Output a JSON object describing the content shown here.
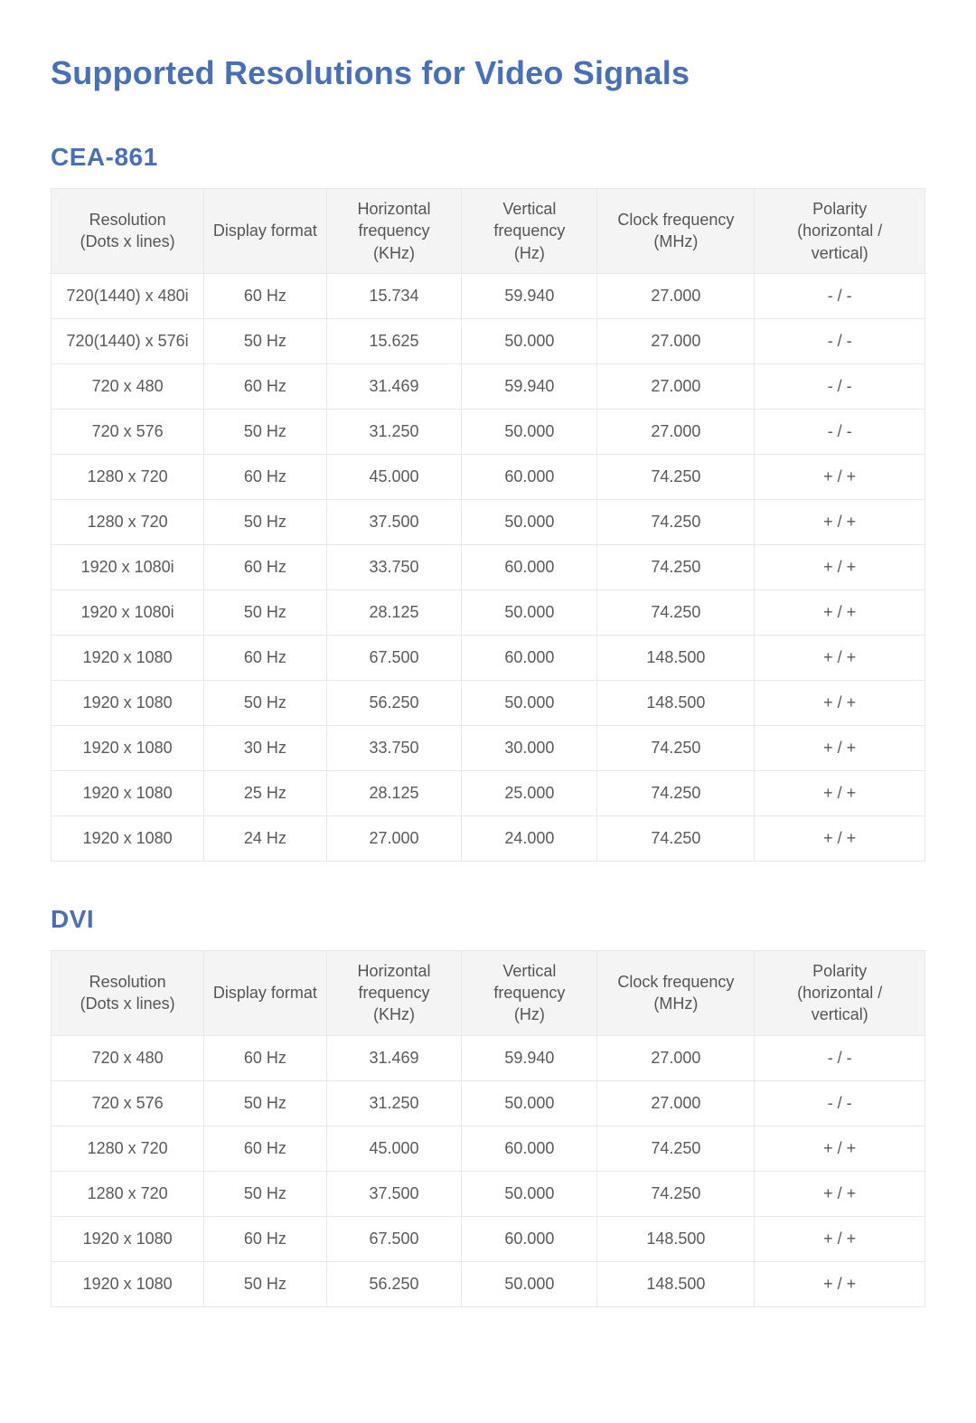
{
  "title": "Supported Resolutions for Video Signals",
  "columns": [
    "Resolution\n(Dots x lines)",
    "Display format",
    "Horizontal\nfrequency\n(KHz)",
    "Vertical\nfrequency\n(Hz)",
    "Clock frequency\n(MHz)",
    "Polarity\n(horizontal /\nvertical)"
  ],
  "sections": [
    {
      "heading": "CEA-861",
      "rows": [
        [
          "720(1440) x 480i",
          "60 Hz",
          "15.734",
          "59.940",
          "27.000",
          "- / -"
        ],
        [
          "720(1440) x 576i",
          "50 Hz",
          "15.625",
          "50.000",
          "27.000",
          "- / -"
        ],
        [
          "720 x 480",
          "60 Hz",
          "31.469",
          "59.940",
          "27.000",
          "- / -"
        ],
        [
          "720 x 576",
          "50 Hz",
          "31.250",
          "50.000",
          "27.000",
          "- / -"
        ],
        [
          "1280 x 720",
          "60 Hz",
          "45.000",
          "60.000",
          "74.250",
          "+ / +"
        ],
        [
          "1280 x 720",
          "50 Hz",
          "37.500",
          "50.000",
          "74.250",
          "+ / +"
        ],
        [
          "1920 x 1080i",
          "60 Hz",
          "33.750",
          "60.000",
          "74.250",
          "+ / +"
        ],
        [
          "1920 x 1080i",
          "50 Hz",
          "28.125",
          "50.000",
          "74.250",
          "+ / +"
        ],
        [
          "1920 x 1080",
          "60 Hz",
          "67.500",
          "60.000",
          "148.500",
          "+ / +"
        ],
        [
          "1920 x 1080",
          "50 Hz",
          "56.250",
          "50.000",
          "148.500",
          "+ / +"
        ],
        [
          "1920 x 1080",
          "30 Hz",
          "33.750",
          "30.000",
          "74.250",
          "+ / +"
        ],
        [
          "1920 x 1080",
          "25 Hz",
          "28.125",
          "25.000",
          "74.250",
          "+ / +"
        ],
        [
          "1920 x 1080",
          "24 Hz",
          "27.000",
          "24.000",
          "74.250",
          "+ / +"
        ]
      ]
    },
    {
      "heading": "DVI",
      "rows": [
        [
          "720 x 480",
          "60 Hz",
          "31.469",
          "59.940",
          "27.000",
          "- / -"
        ],
        [
          "720 x 576",
          "50 Hz",
          "31.250",
          "50.000",
          "27.000",
          "- / -"
        ],
        [
          "1280 x 720",
          "60 Hz",
          "45.000",
          "60.000",
          "74.250",
          "+ / +"
        ],
        [
          "1280 x 720",
          "50 Hz",
          "37.500",
          "50.000",
          "74.250",
          "+ / +"
        ],
        [
          "1920 x 1080",
          "60 Hz",
          "67.500",
          "60.000",
          "148.500",
          "+ / +"
        ],
        [
          "1920 x 1080",
          "50 Hz",
          "56.250",
          "50.000",
          "148.500",
          "+ / +"
        ]
      ]
    }
  ],
  "styling": {
    "title_color": "#4a6fb3",
    "heading_color": "#4a6fb3",
    "text_color": "#5a5a5a",
    "border_color": "#e8e8e8",
    "header_bg": "#f4f4f4",
    "background_color": "#ffffff",
    "title_fontsize": 36,
    "heading_fontsize": 28,
    "cell_fontsize": 18,
    "column_widths_pct": [
      17.5,
      14,
      15.5,
      15.5,
      18,
      19.5
    ]
  }
}
